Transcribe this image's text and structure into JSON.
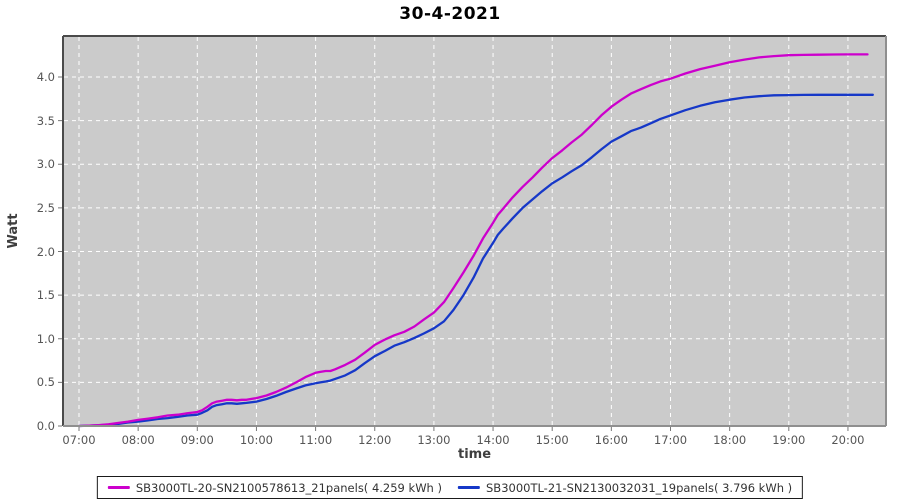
{
  "title": "30-4-2021",
  "axes": {
    "x_label": "time",
    "y_label": "Watt",
    "x_ticks": [
      "07:00",
      "08:00",
      "09:00",
      "10:00",
      "11:00",
      "12:00",
      "13:00",
      "14:00",
      "15:00",
      "16:00",
      "17:00",
      "18:00",
      "19:00",
      "20:00"
    ],
    "y_ticks": [
      "0.0",
      "0.5",
      "1.0",
      "1.5",
      "2.0",
      "2.5",
      "3.0",
      "3.5",
      "4.0"
    ]
  },
  "colors": {
    "series1": "#CC00CC",
    "series2": "#1638C8",
    "plot_background": "#CBCBCB",
    "gridline": "#FFFFFF",
    "plot_border_dark": "#4A4A4A",
    "plot_border_light": "#8F8F8F",
    "tick": "#777777",
    "tick_label": "#555555",
    "legend_border": "#1A1A1A"
  },
  "chart_data": {
    "type": "line",
    "title": "30-4-2021",
    "xlabel": "time",
    "ylabel": "Watt",
    "x_unit": "hour_of_day",
    "xlim": [
      6.73,
      20.64
    ],
    "ylim": [
      0,
      4.47
    ],
    "x_tick_hours": [
      7,
      8,
      9,
      10,
      11,
      12,
      13,
      14,
      15,
      16,
      17,
      18,
      19,
      20
    ],
    "y_tick_values": [
      0,
      0.5,
      1.0,
      1.5,
      2.0,
      2.5,
      3.0,
      3.5,
      4.0
    ],
    "y_gridline_values": [
      0.5,
      1.0,
      1.5,
      2.0,
      2.5,
      3.0,
      3.5,
      4.0
    ],
    "grid": true,
    "grid_style": "dashed-white",
    "legend_position": "bottom",
    "series": [
      {
        "name": "SB3000TL-20-SN2100578613_21panels( 4.259 kWh )",
        "color": "#CC00CC",
        "total_kwh": 4.259,
        "points": [
          [
            7.0,
            0.0
          ],
          [
            7.17,
            0.005
          ],
          [
            7.33,
            0.01
          ],
          [
            7.5,
            0.02
          ],
          [
            7.67,
            0.035
          ],
          [
            7.83,
            0.05
          ],
          [
            8.0,
            0.07
          ],
          [
            8.17,
            0.085
          ],
          [
            8.33,
            0.1
          ],
          [
            8.5,
            0.12
          ],
          [
            8.67,
            0.13
          ],
          [
            8.83,
            0.145
          ],
          [
            9.0,
            0.16
          ],
          [
            9.08,
            0.18
          ],
          [
            9.17,
            0.22
          ],
          [
            9.25,
            0.26
          ],
          [
            9.33,
            0.28
          ],
          [
            9.42,
            0.29
          ],
          [
            9.5,
            0.3
          ],
          [
            9.58,
            0.3
          ],
          [
            9.67,
            0.295
          ],
          [
            9.75,
            0.3
          ],
          [
            9.83,
            0.3
          ],
          [
            10.0,
            0.32
          ],
          [
            10.17,
            0.35
          ],
          [
            10.33,
            0.39
          ],
          [
            10.5,
            0.44
          ],
          [
            10.67,
            0.5
          ],
          [
            10.83,
            0.56
          ],
          [
            11.0,
            0.61
          ],
          [
            11.08,
            0.62
          ],
          [
            11.17,
            0.63
          ],
          [
            11.25,
            0.63
          ],
          [
            11.33,
            0.65
          ],
          [
            11.5,
            0.7
          ],
          [
            11.67,
            0.76
          ],
          [
            11.83,
            0.84
          ],
          [
            12.0,
            0.93
          ],
          [
            12.17,
            0.99
          ],
          [
            12.33,
            1.04
          ],
          [
            12.5,
            1.08
          ],
          [
            12.67,
            1.14
          ],
          [
            12.83,
            1.22
          ],
          [
            13.0,
            1.3
          ],
          [
            13.17,
            1.42
          ],
          [
            13.33,
            1.58
          ],
          [
            13.5,
            1.76
          ],
          [
            13.67,
            1.95
          ],
          [
            13.83,
            2.15
          ],
          [
            14.0,
            2.33
          ],
          [
            14.08,
            2.42
          ],
          [
            14.17,
            2.49
          ],
          [
            14.33,
            2.62
          ],
          [
            14.5,
            2.74
          ],
          [
            14.67,
            2.85
          ],
          [
            14.83,
            2.96
          ],
          [
            15.0,
            3.07
          ],
          [
            15.17,
            3.16
          ],
          [
            15.33,
            3.25
          ],
          [
            15.5,
            3.34
          ],
          [
            15.67,
            3.45
          ],
          [
            15.83,
            3.56
          ],
          [
            16.0,
            3.66
          ],
          [
            16.17,
            3.74
          ],
          [
            16.33,
            3.81
          ],
          [
            16.5,
            3.86
          ],
          [
            16.67,
            3.91
          ],
          [
            16.83,
            3.95
          ],
          [
            17.0,
            3.98
          ],
          [
            17.25,
            4.04
          ],
          [
            17.5,
            4.09
          ],
          [
            17.75,
            4.13
          ],
          [
            18.0,
            4.17
          ],
          [
            18.25,
            4.2
          ],
          [
            18.5,
            4.225
          ],
          [
            18.75,
            4.24
          ],
          [
            19.0,
            4.25
          ],
          [
            19.25,
            4.253
          ],
          [
            19.5,
            4.256
          ],
          [
            19.75,
            4.258
          ],
          [
            20.0,
            4.259
          ],
          [
            20.33,
            4.259
          ]
        ]
      },
      {
        "name": "SB3000TL-21-SN2130032031_19panels( 3.796 kWh )",
        "color": "#1638C8",
        "total_kwh": 3.796,
        "points": [
          [
            7.0,
            0.0
          ],
          [
            7.17,
            0.004
          ],
          [
            7.33,
            0.008
          ],
          [
            7.5,
            0.015
          ],
          [
            7.67,
            0.025
          ],
          [
            7.83,
            0.04
          ],
          [
            8.0,
            0.05
          ],
          [
            8.17,
            0.065
          ],
          [
            8.33,
            0.08
          ],
          [
            8.5,
            0.09
          ],
          [
            8.67,
            0.105
          ],
          [
            8.83,
            0.12
          ],
          [
            9.0,
            0.13
          ],
          [
            9.08,
            0.15
          ],
          [
            9.17,
            0.18
          ],
          [
            9.25,
            0.22
          ],
          [
            9.33,
            0.24
          ],
          [
            9.42,
            0.25
          ],
          [
            9.5,
            0.26
          ],
          [
            9.58,
            0.26
          ],
          [
            9.67,
            0.255
          ],
          [
            9.75,
            0.26
          ],
          [
            9.83,
            0.265
          ],
          [
            10.0,
            0.28
          ],
          [
            10.17,
            0.31
          ],
          [
            10.33,
            0.345
          ],
          [
            10.5,
            0.39
          ],
          [
            10.67,
            0.43
          ],
          [
            10.83,
            0.465
          ],
          [
            11.0,
            0.49
          ],
          [
            11.08,
            0.5
          ],
          [
            11.17,
            0.51
          ],
          [
            11.25,
            0.52
          ],
          [
            11.33,
            0.54
          ],
          [
            11.5,
            0.58
          ],
          [
            11.67,
            0.64
          ],
          [
            11.83,
            0.72
          ],
          [
            12.0,
            0.8
          ],
          [
            12.17,
            0.86
          ],
          [
            12.33,
            0.92
          ],
          [
            12.5,
            0.96
          ],
          [
            12.67,
            1.01
          ],
          [
            12.83,
            1.06
          ],
          [
            13.0,
            1.12
          ],
          [
            13.17,
            1.2
          ],
          [
            13.33,
            1.33
          ],
          [
            13.5,
            1.5
          ],
          [
            13.67,
            1.7
          ],
          [
            13.83,
            1.92
          ],
          [
            14.0,
            2.1
          ],
          [
            14.08,
            2.19
          ],
          [
            14.17,
            2.26
          ],
          [
            14.33,
            2.38
          ],
          [
            14.5,
            2.5
          ],
          [
            14.67,
            2.6
          ],
          [
            14.83,
            2.69
          ],
          [
            15.0,
            2.78
          ],
          [
            15.17,
            2.85
          ],
          [
            15.33,
            2.92
          ],
          [
            15.5,
            2.99
          ],
          [
            15.67,
            3.08
          ],
          [
            15.83,
            3.17
          ],
          [
            16.0,
            3.26
          ],
          [
            16.17,
            3.32
          ],
          [
            16.33,
            3.38
          ],
          [
            16.5,
            3.42
          ],
          [
            16.67,
            3.47
          ],
          [
            16.83,
            3.52
          ],
          [
            17.0,
            3.56
          ],
          [
            17.25,
            3.62
          ],
          [
            17.5,
            3.67
          ],
          [
            17.75,
            3.71
          ],
          [
            18.0,
            3.74
          ],
          [
            18.25,
            3.765
          ],
          [
            18.5,
            3.78
          ],
          [
            18.75,
            3.79
          ],
          [
            19.0,
            3.793
          ],
          [
            19.25,
            3.795
          ],
          [
            19.5,
            3.796
          ],
          [
            19.75,
            3.796
          ],
          [
            20.0,
            3.796
          ],
          [
            20.42,
            3.796
          ]
        ]
      }
    ]
  }
}
